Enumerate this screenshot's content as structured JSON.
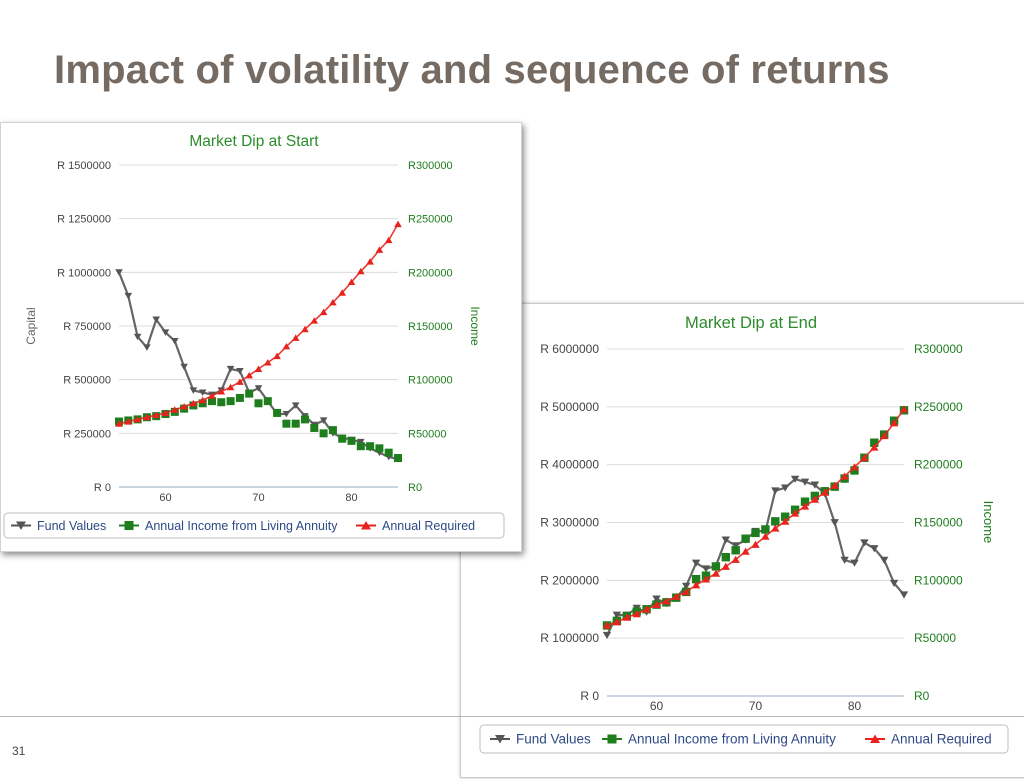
{
  "slide": {
    "title": "Impact of volatility and sequence of returns",
    "number": "31"
  },
  "chart_data": [
    {
      "type": "line",
      "title": "Market Dip at Start",
      "ylabel": "Capital",
      "y2label": "Income",
      "ylim": [
        0,
        1500000
      ],
      "y2lim": [
        0,
        300000
      ],
      "xlim": [
        55,
        85
      ],
      "xticks": [
        "60",
        "70",
        "80"
      ],
      "xtick_values": [
        60,
        70,
        80
      ],
      "yticks": [
        "R 0",
        "R 250000",
        "R 500000",
        "R 750000",
        "R 1000000",
        "R 1250000",
        "R 1500000"
      ],
      "ytick_values": [
        0,
        250000,
        500000,
        750000,
        1000000,
        1250000,
        1500000
      ],
      "y2ticks": [
        "R0",
        "R50000",
        "R100000",
        "R150000",
        "R200000",
        "R250000",
        "R300000"
      ],
      "y2tick_values": [
        0,
        50000,
        100000,
        150000,
        200000,
        250000,
        300000
      ],
      "grid": true,
      "legend_placement": "bottom",
      "x": [
        55,
        56,
        57,
        58,
        59,
        60,
        61,
        62,
        63,
        64,
        65,
        66,
        67,
        68,
        69,
        70,
        71,
        72,
        73,
        74,
        75,
        76,
        77,
        78,
        79,
        80,
        81,
        82,
        83,
        84,
        85
      ],
      "series": [
        {
          "name": "Fund Values",
          "axis": "left",
          "color": "#555555",
          "marker": "triangle-down",
          "values": [
            1000000,
            890000,
            700000,
            650000,
            780000,
            720000,
            680000,
            560000,
            450000,
            440000,
            430000,
            450000,
            550000,
            540000,
            440000,
            460000,
            400000,
            340000,
            340000,
            380000,
            330000,
            290000,
            310000,
            250000,
            230000,
            220000,
            210000,
            180000,
            160000,
            140000,
            130000
          ]
        },
        {
          "name": "Annual Income from Living Annuity",
          "axis": "right",
          "color": "#1e7e1e",
          "marker": "square",
          "values": [
            61000,
            62000,
            63000,
            65000,
            66000,
            68000,
            70000,
            73000,
            76000,
            78000,
            80000,
            79000,
            80000,
            83000,
            87000,
            78000,
            80000,
            69000,
            59000,
            59000,
            63000,
            55000,
            50000,
            53000,
            45000,
            43000,
            38000,
            38000,
            36000,
            32000,
            27000
          ]
        },
        {
          "name": "Annual Required",
          "axis": "right",
          "color": "#e8231e",
          "marker": "triangle-up",
          "values": [
            59000,
            61000,
            63000,
            65000,
            67000,
            69000,
            72000,
            75000,
            78000,
            81000,
            85000,
            89000,
            93000,
            98000,
            104000,
            110000,
            116000,
            122000,
            131000,
            139000,
            147000,
            155000,
            163000,
            172000,
            181000,
            191000,
            201000,
            210000,
            221000,
            230000,
            245000
          ]
        }
      ]
    },
    {
      "type": "line",
      "title": "Market Dip at End",
      "ylabel": "",
      "y2label": "Income",
      "ylim": [
        0,
        6000000
      ],
      "y2lim": [
        0,
        300000
      ],
      "xlim": [
        55,
        85
      ],
      "xticks": [
        "60",
        "70",
        "80"
      ],
      "xtick_values": [
        60,
        70,
        80
      ],
      "yticks": [
        "R 0",
        "R 1000000",
        "R 2000000",
        "R 3000000",
        "R 4000000",
        "R 5000000",
        "R 6000000"
      ],
      "ytick_values": [
        0,
        1000000,
        2000000,
        3000000,
        4000000,
        5000000,
        6000000
      ],
      "y2ticks": [
        "R0",
        "R50000",
        "R100000",
        "R150000",
        "R200000",
        "R250000",
        "R300000"
      ],
      "y2tick_values": [
        0,
        50000,
        100000,
        150000,
        200000,
        250000,
        300000
      ],
      "grid": true,
      "legend_placement": "bottom",
      "x": [
        55,
        56,
        57,
        58,
        59,
        60,
        61,
        62,
        63,
        64,
        65,
        66,
        67,
        68,
        69,
        70,
        71,
        72,
        73,
        74,
        75,
        76,
        77,
        78,
        79,
        80,
        81,
        82,
        83,
        84,
        85
      ],
      "series": [
        {
          "name": "Fund Values",
          "axis": "left",
          "color": "#555555",
          "marker": "triangle-down",
          "values": [
            1050000,
            1400000,
            1400000,
            1520000,
            1450000,
            1680000,
            1600000,
            1700000,
            1900000,
            2300000,
            2200000,
            2250000,
            2700000,
            2600000,
            2700000,
            2850000,
            2850000,
            3550000,
            3600000,
            3750000,
            3700000,
            3650000,
            3500000,
            3000000,
            2350000,
            2300000,
            2650000,
            2550000,
            2350000,
            1950000,
            1750000
          ]
        },
        {
          "name": "Annual Income from Living Annuity",
          "axis": "right",
          "color": "#1e7e1e",
          "marker": "square",
          "values": [
            61000,
            65000,
            69000,
            73000,
            75000,
            79000,
            81000,
            85000,
            90000,
            101000,
            104000,
            112000,
            120000,
            126000,
            136000,
            141000,
            144000,
            151000,
            155000,
            161000,
            168000,
            173000,
            177000,
            181000,
            188000,
            195000,
            206000,
            219000,
            226000,
            238000,
            247000
          ]
        },
        {
          "name": "Annual Required",
          "axis": "right",
          "color": "#e8231e",
          "marker": "triangle-up",
          "values": [
            61000,
            64000,
            68000,
            71000,
            75000,
            79000,
            82000,
            86000,
            90000,
            96000,
            101000,
            106000,
            112000,
            118000,
            125000,
            131000,
            138000,
            145000,
            151000,
            158000,
            164000,
            170000,
            176000,
            182000,
            190000,
            198000,
            206000,
            215000,
            225000,
            236000,
            248000
          ]
        }
      ]
    }
  ]
}
